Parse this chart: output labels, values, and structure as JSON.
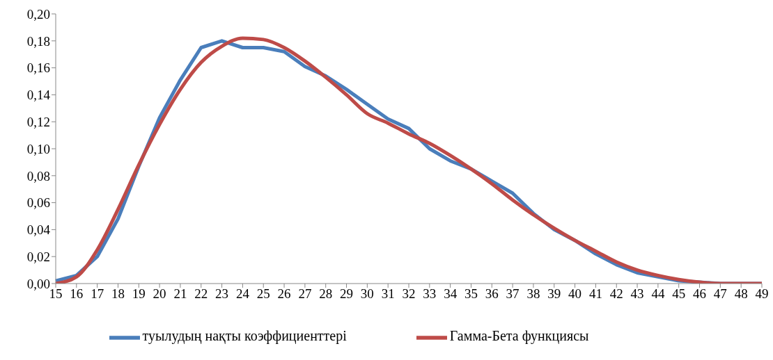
{
  "chart_data": {
    "type": "line",
    "categories": [
      "15",
      "16",
      "17",
      "18",
      "19",
      "20",
      "21",
      "22",
      "23",
      "24",
      "25",
      "26",
      "27",
      "28",
      "29",
      "30",
      "31",
      "32",
      "33",
      "34",
      "35",
      "36",
      "37",
      "38",
      "39",
      "40",
      "41",
      "42",
      "43",
      "44",
      "45",
      "46",
      "47",
      "48",
      "49"
    ],
    "series": [
      {
        "name": "туылудың нақты коэффициенттері",
        "color": "#4a7ebb",
        "values": [
          0.002,
          0.006,
          0.02,
          0.048,
          0.087,
          0.123,
          0.151,
          0.175,
          0.18,
          0.175,
          0.175,
          0.172,
          0.161,
          0.154,
          0.144,
          0.133,
          0.122,
          0.115,
          0.1,
          0.091,
          0.085,
          0.076,
          0.067,
          0.052,
          0.04,
          0.032,
          0.022,
          0.014,
          0.008,
          0.005,
          0.002,
          0.001,
          0,
          0,
          0
        ]
      },
      {
        "name": "Гамма-Бета функциясы",
        "color": "#be4b48",
        "values": [
          0.0,
          0.005,
          0.025,
          0.055,
          0.088,
          0.118,
          0.144,
          0.164,
          0.176,
          0.182,
          0.181,
          0.175,
          0.165,
          0.153,
          0.14,
          0.126,
          0.119,
          0.111,
          0.104,
          0.095,
          0.085,
          0.074,
          0.062,
          0.051,
          0.041,
          0.032,
          0.024,
          0.016,
          0.01,
          0.006,
          0.003,
          0.001,
          0,
          0,
          0
        ]
      }
    ],
    "ylim": [
      0,
      0.2
    ],
    "yticks": [
      {
        "value": 0,
        "label": "0,00"
      },
      {
        "value": 0.02,
        "label": "0,02"
      },
      {
        "value": 0.04,
        "label": "0,04"
      },
      {
        "value": 0.06,
        "label": "0,06"
      },
      {
        "value": 0.08,
        "label": "0,08"
      },
      {
        "value": 0.1,
        "label": "0,10"
      },
      {
        "value": 0.12,
        "label": "0,12"
      },
      {
        "value": 0.14,
        "label": "0,14"
      },
      {
        "value": 0.16,
        "label": "0,16"
      },
      {
        "value": 0.18,
        "label": "0,18"
      },
      {
        "value": 0.2,
        "label": "0,20"
      }
    ],
    "grid": false,
    "legend": "bottom",
    "marker": "none",
    "line_style": "solid"
  }
}
